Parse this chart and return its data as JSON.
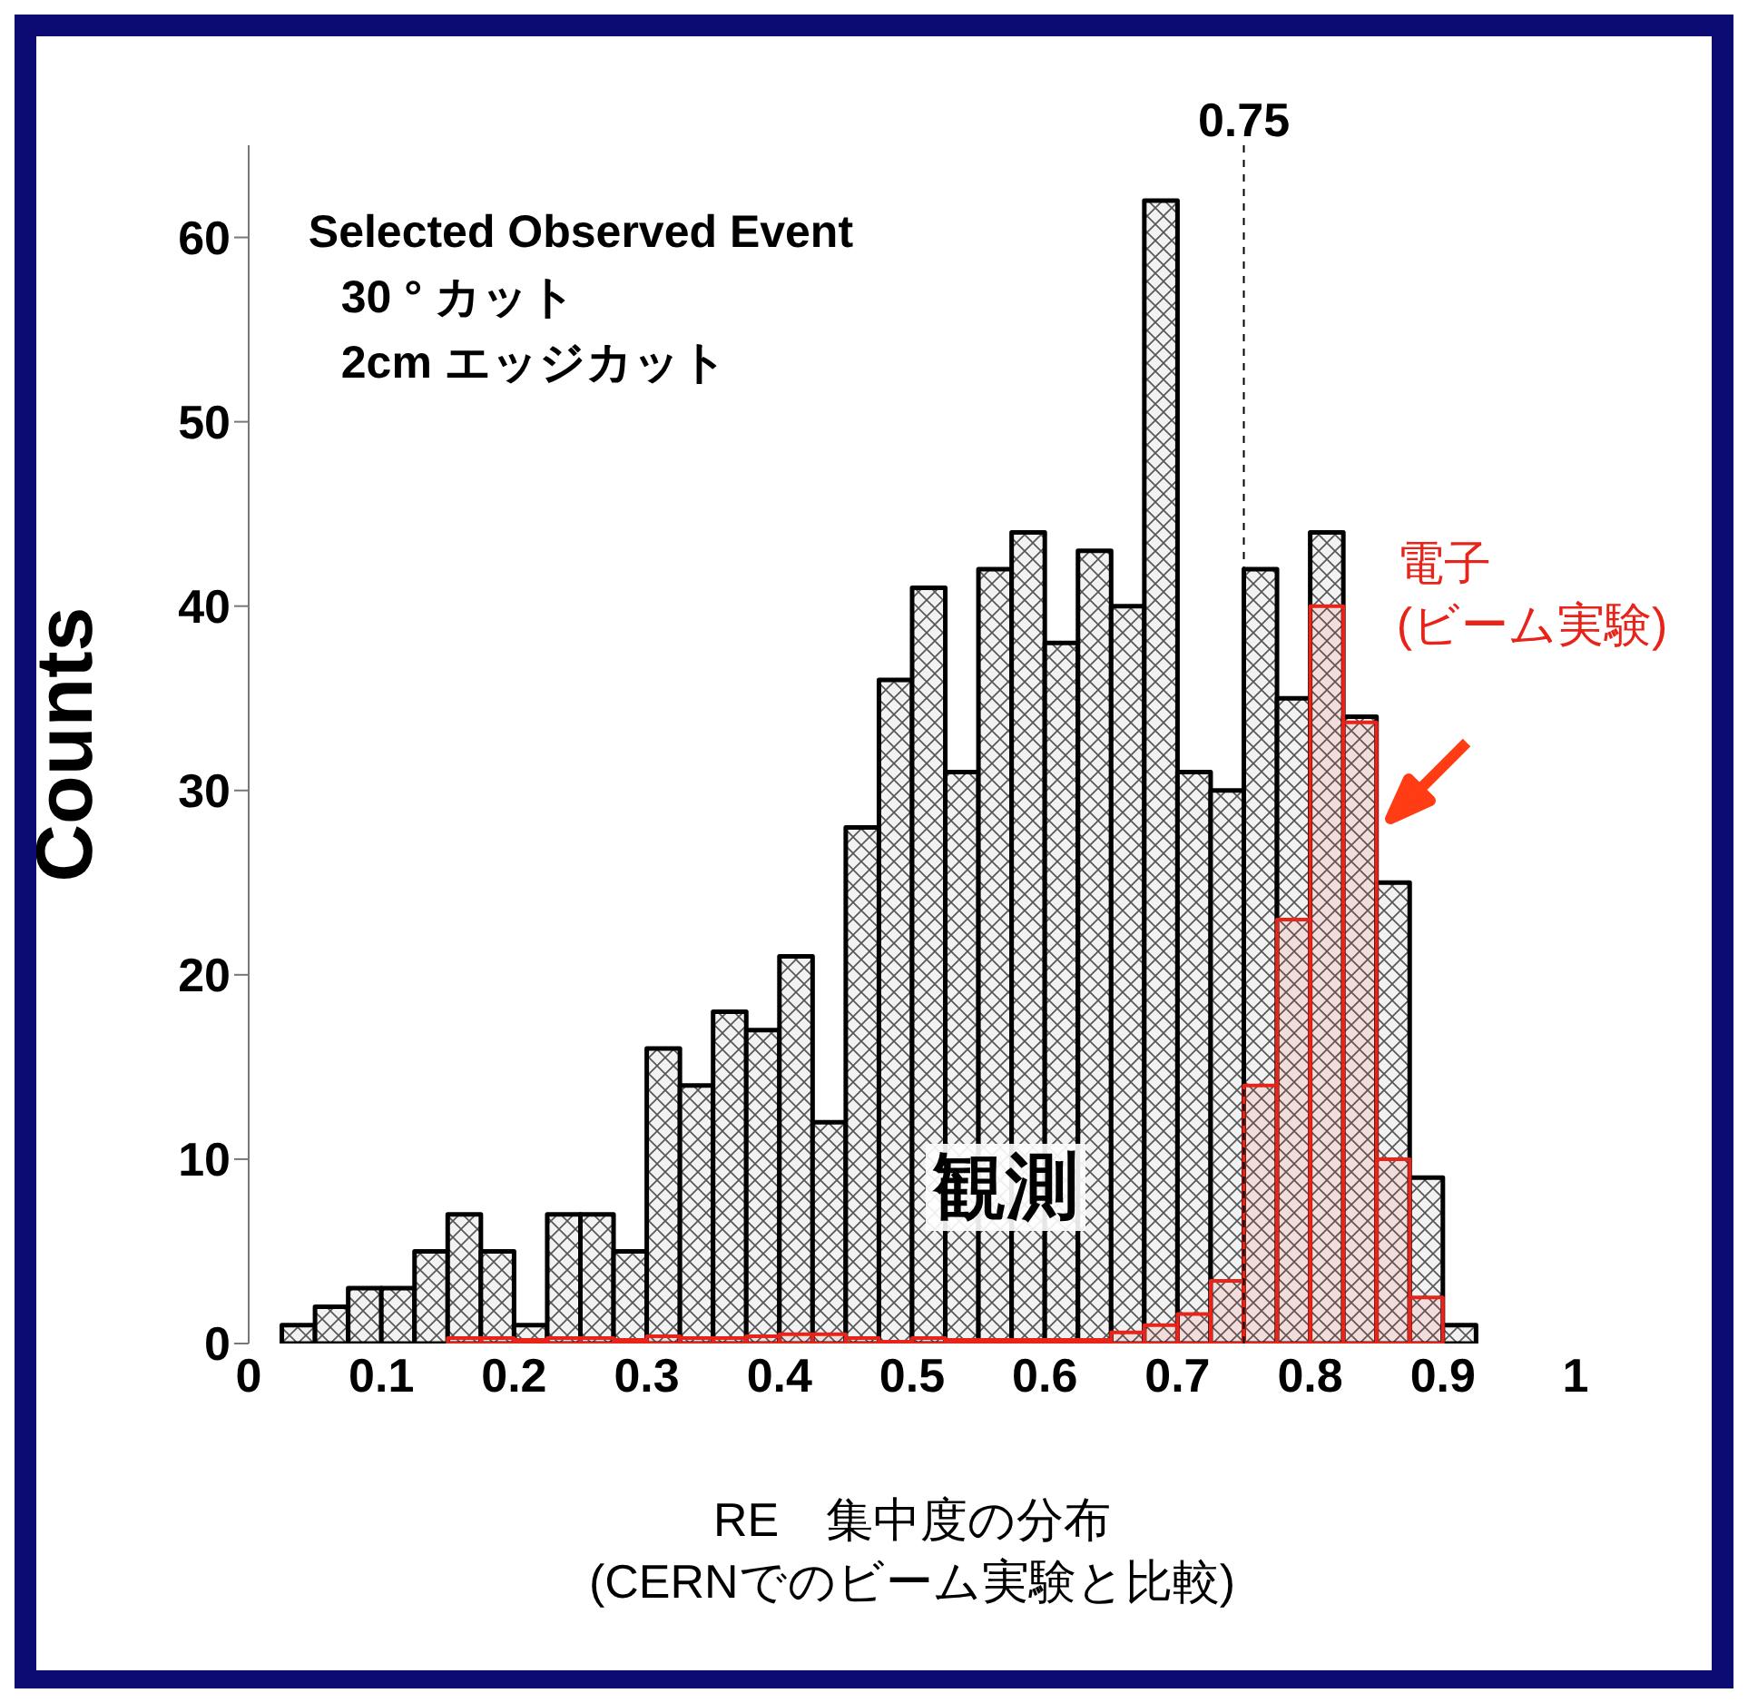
{
  "chart_data": {
    "type": "histogram",
    "xlabel": "RE　集中度の分布\n(CERNでのビーム実験と比較)",
    "ylabel": "Counts",
    "annotations": [
      "Selected Observed Event",
      "30 ° カット",
      "2cm エッジカット"
    ],
    "bins": [
      0,
      0.025,
      0.05,
      0.075,
      0.1,
      0.125,
      0.15,
      0.175,
      0.2,
      0.225,
      0.25,
      0.275,
      0.3,
      0.325,
      0.35,
      0.375,
      0.4,
      0.425,
      0.45,
      0.475,
      0.5,
      0.525,
      0.55,
      0.575,
      0.6,
      0.625,
      0.65,
      0.675,
      0.7,
      0.725,
      0.75,
      0.775,
      0.8,
      0.825,
      0.85,
      0.875,
      0.9,
      0.925,
      0.95,
      0.975,
      1
    ],
    "series": [
      {
        "name": "観測",
        "color": "#000000",
        "values": [
          0,
          1,
          2,
          3,
          3,
          5,
          7,
          5,
          1,
          7,
          7,
          5,
          16,
          14,
          18,
          17,
          21,
          12,
          28,
          36,
          41,
          31,
          42,
          44,
          38,
          43,
          40,
          62,
          31,
          30,
          42,
          35,
          44,
          34,
          25,
          9,
          1,
          0,
          0,
          0
        ]
      },
      {
        "name": "電子\n(ビーム実験)",
        "color": "#e8231a",
        "values": [
          0,
          0,
          0,
          0,
          0,
          0,
          0.3,
          0.3,
          0.2,
          0.3,
          0.3,
          0.2,
          0.4,
          0.3,
          0.3,
          0.4,
          0.5,
          0.5,
          0.3,
          0.1,
          0.3,
          0.2,
          0.2,
          0.2,
          0.2,
          0.2,
          0.6,
          1,
          1.6,
          3.4,
          14,
          23,
          40,
          33.7,
          10,
          2.5,
          0,
          0,
          0,
          0
        ]
      }
    ],
    "xlim": [
      0,
      1
    ],
    "xticks": [
      0,
      0.1,
      0.2,
      0.3,
      0.4,
      0.5,
      0.6,
      0.7,
      0.8,
      0.9,
      1
    ],
    "ylim": [
      0,
      65
    ],
    "yticks": [
      0,
      10,
      20,
      30,
      40,
      50,
      60
    ],
    "ref_lines": [
      {
        "axis": "x",
        "value": 0.75,
        "label": "0.75",
        "color": "#000000",
        "line_style": "dashed"
      }
    ],
    "grid": false,
    "legend": false
  }
}
